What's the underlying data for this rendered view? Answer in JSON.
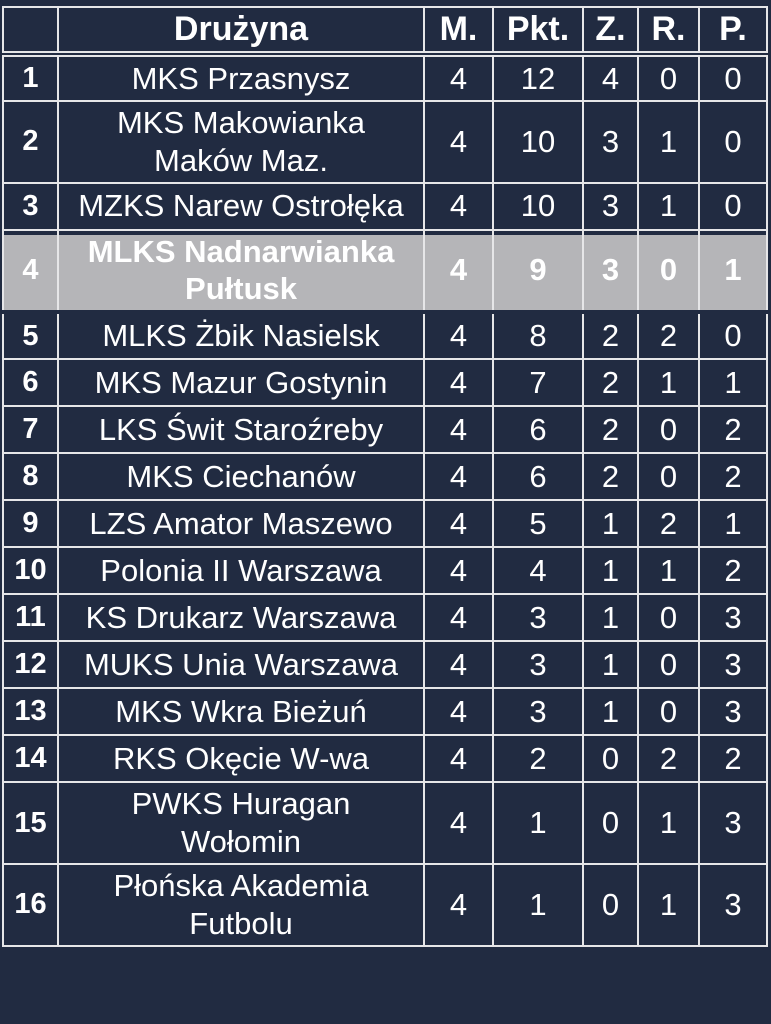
{
  "colors": {
    "background": "#212b41",
    "grid_line": "#e6e6e8",
    "highlight_row": "#b5b5b8",
    "text": "#ffffff"
  },
  "chart_data": {
    "type": "table",
    "columns": [
      "",
      "Drużyna",
      "M.",
      "Pkt.",
      "Z.",
      "R.",
      "P."
    ],
    "rows": [
      {
        "pos": 1,
        "team": "MKS Przasnysz",
        "m": 4,
        "pkt": 12,
        "z": 4,
        "r": 0,
        "p": 0,
        "highlighted": false
      },
      {
        "pos": 2,
        "team": "MKS Makowianka\nMaków Maz.",
        "m": 4,
        "pkt": 10,
        "z": 3,
        "r": 1,
        "p": 0,
        "highlighted": false
      },
      {
        "pos": 3,
        "team": "MZKS Narew Ostrołęka",
        "m": 4,
        "pkt": 10,
        "z": 3,
        "r": 1,
        "p": 0,
        "highlighted": false
      },
      {
        "pos": 4,
        "team": "MLKS Nadnarwianka\nPułtusk",
        "m": 4,
        "pkt": 9,
        "z": 3,
        "r": 0,
        "p": 1,
        "highlighted": true
      },
      {
        "pos": 5,
        "team": "MLKS Żbik Nasielsk",
        "m": 4,
        "pkt": 8,
        "z": 2,
        "r": 2,
        "p": 0,
        "highlighted": false
      },
      {
        "pos": 6,
        "team": "MKS Mazur Gostynin",
        "m": 4,
        "pkt": 7,
        "z": 2,
        "r": 1,
        "p": 1,
        "highlighted": false
      },
      {
        "pos": 7,
        "team": "LKS Świt Staroźreby",
        "m": 4,
        "pkt": 6,
        "z": 2,
        "r": 0,
        "p": 2,
        "highlighted": false
      },
      {
        "pos": 8,
        "team": "MKS Ciechanów",
        "m": 4,
        "pkt": 6,
        "z": 2,
        "r": 0,
        "p": 2,
        "highlighted": false
      },
      {
        "pos": 9,
        "team": "LZS Amator Maszewo",
        "m": 4,
        "pkt": 5,
        "z": 1,
        "r": 2,
        "p": 1,
        "highlighted": false
      },
      {
        "pos": 10,
        "team": "Polonia II Warszawa",
        "m": 4,
        "pkt": 4,
        "z": 1,
        "r": 1,
        "p": 2,
        "highlighted": false
      },
      {
        "pos": 11,
        "team": "KS Drukarz Warszawa",
        "m": 4,
        "pkt": 3,
        "z": 1,
        "r": 0,
        "p": 3,
        "highlighted": false
      },
      {
        "pos": 12,
        "team": "MUKS Unia Warszawa",
        "m": 4,
        "pkt": 3,
        "z": 1,
        "r": 0,
        "p": 3,
        "highlighted": false
      },
      {
        "pos": 13,
        "team": "MKS Wkra Bieżuń",
        "m": 4,
        "pkt": 3,
        "z": 1,
        "r": 0,
        "p": 3,
        "highlighted": false
      },
      {
        "pos": 14,
        "team": "RKS Okęcie W-wa",
        "m": 4,
        "pkt": 2,
        "z": 0,
        "r": 2,
        "p": 2,
        "highlighted": false
      },
      {
        "pos": 15,
        "team": "PWKS Huragan\nWołomin",
        "m": 4,
        "pkt": 1,
        "z": 0,
        "r": 1,
        "p": 3,
        "highlighted": false
      },
      {
        "pos": 16,
        "team": "Płońska Akademia\nFutbolu",
        "m": 4,
        "pkt": 1,
        "z": 0,
        "r": 1,
        "p": 3,
        "highlighted": false
      }
    ]
  }
}
